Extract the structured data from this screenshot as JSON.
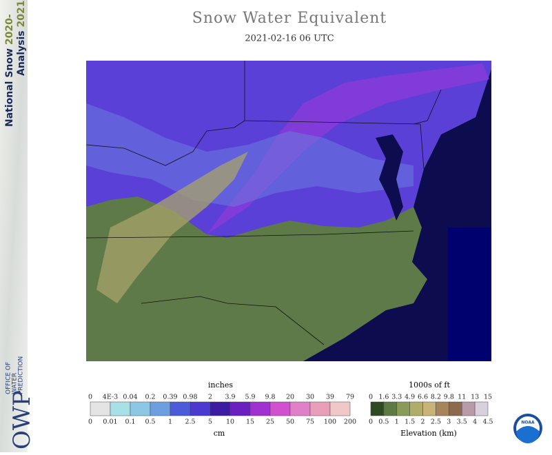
{
  "sidebar": {
    "title_line1": "National Snow",
    "years_line1": "2020-",
    "title_line2": "Analysis",
    "years_line2": "2021",
    "logo": "OWP",
    "org": [
      "OFFICE OF",
      "WATER",
      "PREDICTION"
    ]
  },
  "header": {
    "title": "Snow Water Equivalent",
    "subtitle": "2021-02-16 06 UTC"
  },
  "snow_legend": {
    "top_unit": "inches",
    "top_labels": [
      "0",
      "4E-3",
      "0.04",
      "0.2",
      "0.39",
      "0.98",
      "2",
      "3.9",
      "5.9",
      "9.8",
      "20",
      "30",
      "39",
      "79"
    ],
    "bottom_labels": [
      "0",
      "0.01",
      "0.1",
      "0.5",
      "1",
      "2.5",
      "5",
      "10",
      "15",
      "25",
      "50",
      "75",
      "100",
      "200"
    ],
    "bottom_unit": "cm",
    "colors": [
      "#e4e4e4",
      "#a8e0e8",
      "#8cc8e4",
      "#6c9ee0",
      "#4c5cd8",
      "#4a3ad0",
      "#3c1ca0",
      "#6a20c0",
      "#a030d0",
      "#d050d0",
      "#e080c8",
      "#e8a0b8",
      "#f0c8c8"
    ]
  },
  "elevation_legend": {
    "top_unit": "1000s of ft",
    "top_labels": [
      "0",
      "1.6",
      "3.3",
      "4.9",
      "6.6",
      "8.2",
      "9.8",
      "11",
      "13",
      "15"
    ],
    "bottom_labels": [
      "0",
      "0.5",
      "1",
      "1.5",
      "2",
      "2.5",
      "3",
      "3.5",
      "4",
      "4.5"
    ],
    "bottom_unit": "Elevation (km)",
    "colors": [
      "#2e4a22",
      "#5e7a44",
      "#8a9a58",
      "#b0ac6a",
      "#c8b478",
      "#a8845c",
      "#8c6a4c",
      "#b89aa8",
      "#d8d0dc"
    ]
  },
  "logo": "NOAA"
}
